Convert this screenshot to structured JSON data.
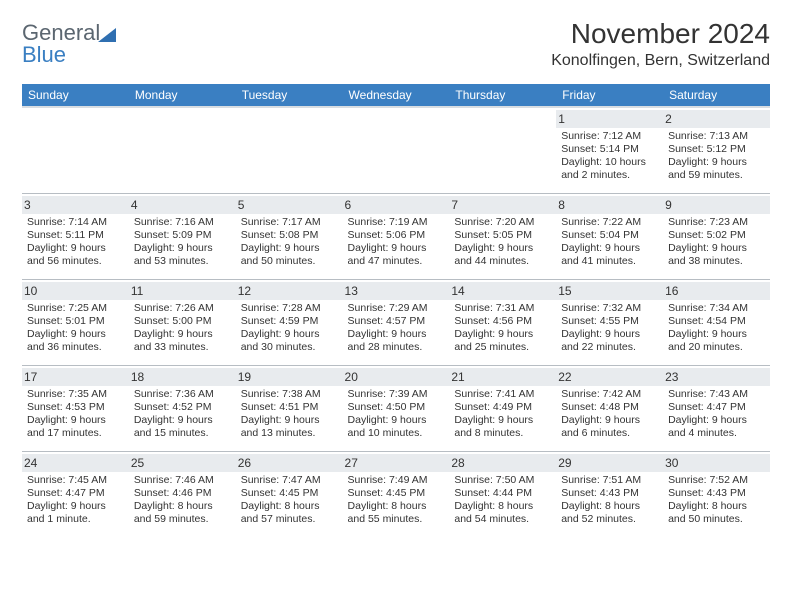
{
  "logo": {
    "line1": "General",
    "line2": "Blue"
  },
  "title": "November 2024",
  "location": "Konolfingen, Bern, Switzerland",
  "colors": {
    "header_bg": "#3a7fc2",
    "header_text": "#ffffff",
    "shaded_bg": "#edf0f3",
    "border": "#b7bdc3",
    "text": "#333333",
    "logo_gray": "#5b6670",
    "logo_blue": "#3a7fc2"
  },
  "day_labels": [
    "Sunday",
    "Monday",
    "Tuesday",
    "Wednesday",
    "Thursday",
    "Friday",
    "Saturday"
  ],
  "weeks": [
    [
      {
        "blank": true
      },
      {
        "blank": true
      },
      {
        "blank": true
      },
      {
        "blank": true
      },
      {
        "blank": true
      },
      {
        "n": "1",
        "sunrise": "Sunrise: 7:12 AM",
        "sunset": "Sunset: 5:14 PM",
        "day1": "Daylight: 10 hours",
        "day2": "and 2 minutes."
      },
      {
        "n": "2",
        "sunrise": "Sunrise: 7:13 AM",
        "sunset": "Sunset: 5:12 PM",
        "day1": "Daylight: 9 hours",
        "day2": "and 59 minutes."
      }
    ],
    [
      {
        "n": "3",
        "sunrise": "Sunrise: 7:14 AM",
        "sunset": "Sunset: 5:11 PM",
        "day1": "Daylight: 9 hours",
        "day2": "and 56 minutes."
      },
      {
        "n": "4",
        "sunrise": "Sunrise: 7:16 AM",
        "sunset": "Sunset: 5:09 PM",
        "day1": "Daylight: 9 hours",
        "day2": "and 53 minutes."
      },
      {
        "n": "5",
        "sunrise": "Sunrise: 7:17 AM",
        "sunset": "Sunset: 5:08 PM",
        "day1": "Daylight: 9 hours",
        "day2": "and 50 minutes."
      },
      {
        "n": "6",
        "sunrise": "Sunrise: 7:19 AM",
        "sunset": "Sunset: 5:06 PM",
        "day1": "Daylight: 9 hours",
        "day2": "and 47 minutes."
      },
      {
        "n": "7",
        "sunrise": "Sunrise: 7:20 AM",
        "sunset": "Sunset: 5:05 PM",
        "day1": "Daylight: 9 hours",
        "day2": "and 44 minutes."
      },
      {
        "n": "8",
        "sunrise": "Sunrise: 7:22 AM",
        "sunset": "Sunset: 5:04 PM",
        "day1": "Daylight: 9 hours",
        "day2": "and 41 minutes."
      },
      {
        "n": "9",
        "sunrise": "Sunrise: 7:23 AM",
        "sunset": "Sunset: 5:02 PM",
        "day1": "Daylight: 9 hours",
        "day2": "and 38 minutes."
      }
    ],
    [
      {
        "n": "10",
        "sunrise": "Sunrise: 7:25 AM",
        "sunset": "Sunset: 5:01 PM",
        "day1": "Daylight: 9 hours",
        "day2": "and 36 minutes."
      },
      {
        "n": "11",
        "sunrise": "Sunrise: 7:26 AM",
        "sunset": "Sunset: 5:00 PM",
        "day1": "Daylight: 9 hours",
        "day2": "and 33 minutes."
      },
      {
        "n": "12",
        "sunrise": "Sunrise: 7:28 AM",
        "sunset": "Sunset: 4:59 PM",
        "day1": "Daylight: 9 hours",
        "day2": "and 30 minutes."
      },
      {
        "n": "13",
        "sunrise": "Sunrise: 7:29 AM",
        "sunset": "Sunset: 4:57 PM",
        "day1": "Daylight: 9 hours",
        "day2": "and 28 minutes."
      },
      {
        "n": "14",
        "sunrise": "Sunrise: 7:31 AM",
        "sunset": "Sunset: 4:56 PM",
        "day1": "Daylight: 9 hours",
        "day2": "and 25 minutes."
      },
      {
        "n": "15",
        "sunrise": "Sunrise: 7:32 AM",
        "sunset": "Sunset: 4:55 PM",
        "day1": "Daylight: 9 hours",
        "day2": "and 22 minutes."
      },
      {
        "n": "16",
        "sunrise": "Sunrise: 7:34 AM",
        "sunset": "Sunset: 4:54 PM",
        "day1": "Daylight: 9 hours",
        "day2": "and 20 minutes."
      }
    ],
    [
      {
        "n": "17",
        "sunrise": "Sunrise: 7:35 AM",
        "sunset": "Sunset: 4:53 PM",
        "day1": "Daylight: 9 hours",
        "day2": "and 17 minutes."
      },
      {
        "n": "18",
        "sunrise": "Sunrise: 7:36 AM",
        "sunset": "Sunset: 4:52 PM",
        "day1": "Daylight: 9 hours",
        "day2": "and 15 minutes."
      },
      {
        "n": "19",
        "sunrise": "Sunrise: 7:38 AM",
        "sunset": "Sunset: 4:51 PM",
        "day1": "Daylight: 9 hours",
        "day2": "and 13 minutes."
      },
      {
        "n": "20",
        "sunrise": "Sunrise: 7:39 AM",
        "sunset": "Sunset: 4:50 PM",
        "day1": "Daylight: 9 hours",
        "day2": "and 10 minutes."
      },
      {
        "n": "21",
        "sunrise": "Sunrise: 7:41 AM",
        "sunset": "Sunset: 4:49 PM",
        "day1": "Daylight: 9 hours",
        "day2": "and 8 minutes."
      },
      {
        "n": "22",
        "sunrise": "Sunrise: 7:42 AM",
        "sunset": "Sunset: 4:48 PM",
        "day1": "Daylight: 9 hours",
        "day2": "and 6 minutes."
      },
      {
        "n": "23",
        "sunrise": "Sunrise: 7:43 AM",
        "sunset": "Sunset: 4:47 PM",
        "day1": "Daylight: 9 hours",
        "day2": "and 4 minutes."
      }
    ],
    [
      {
        "n": "24",
        "sunrise": "Sunrise: 7:45 AM",
        "sunset": "Sunset: 4:47 PM",
        "day1": "Daylight: 9 hours",
        "day2": "and 1 minute."
      },
      {
        "n": "25",
        "sunrise": "Sunrise: 7:46 AM",
        "sunset": "Sunset: 4:46 PM",
        "day1": "Daylight: 8 hours",
        "day2": "and 59 minutes."
      },
      {
        "n": "26",
        "sunrise": "Sunrise: 7:47 AM",
        "sunset": "Sunset: 4:45 PM",
        "day1": "Daylight: 8 hours",
        "day2": "and 57 minutes."
      },
      {
        "n": "27",
        "sunrise": "Sunrise: 7:49 AM",
        "sunset": "Sunset: 4:45 PM",
        "day1": "Daylight: 8 hours",
        "day2": "and 55 minutes."
      },
      {
        "n": "28",
        "sunrise": "Sunrise: 7:50 AM",
        "sunset": "Sunset: 4:44 PM",
        "day1": "Daylight: 8 hours",
        "day2": "and 54 minutes."
      },
      {
        "n": "29",
        "sunrise": "Sunrise: 7:51 AM",
        "sunset": "Sunset: 4:43 PM",
        "day1": "Daylight: 8 hours",
        "day2": "and 52 minutes."
      },
      {
        "n": "30",
        "sunrise": "Sunrise: 7:52 AM",
        "sunset": "Sunset: 4:43 PM",
        "day1": "Daylight: 8 hours",
        "day2": "and 50 minutes."
      }
    ]
  ]
}
